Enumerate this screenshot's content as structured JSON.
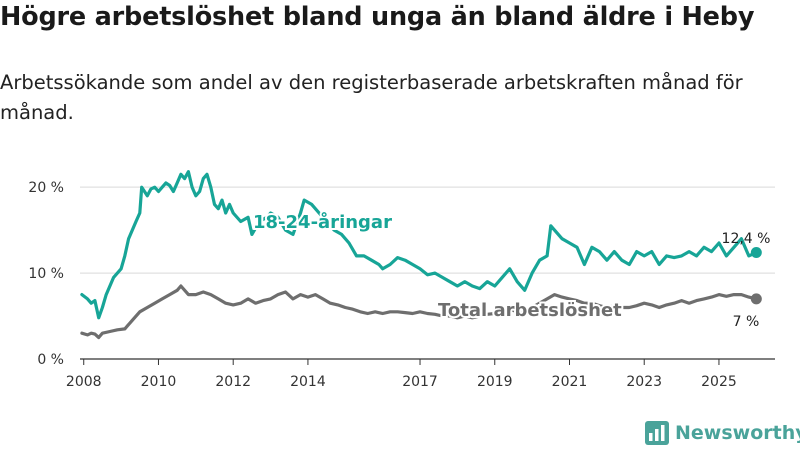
{
  "title": "Högre arbetslöshet bland unga än bland äldre i Heby",
  "subtitle": "Arbetssökande som andel av den registerbaserade arbetskraften månad för månad.",
  "brand": "Newsworthy",
  "colors": {
    "youth": "#17a597",
    "total": "#6e6e6e",
    "axis": "#333333",
    "grid": "#d9d9d9"
  },
  "chart_data": {
    "type": "line",
    "title": "Högre arbetslöshet bland unga än bland äldre i Heby",
    "xlabel": "",
    "ylabel": "",
    "xlim": [
      2007.9,
      2026.5
    ],
    "ylim": [
      0,
      22
    ],
    "y_ticks": [
      0,
      10,
      20
    ],
    "y_tick_labels": [
      "0 %",
      "10 %",
      "20 %"
    ],
    "x_ticks": [
      2008,
      2010,
      2012,
      2014,
      2017,
      2019,
      2021,
      2023,
      2025
    ],
    "x_tick_labels": [
      "2008",
      "2010",
      "2012",
      "2014",
      "2017",
      "2019",
      "2021",
      "2023",
      "2025"
    ],
    "series": [
      {
        "name": "18-24-åringar",
        "end_label": "12,4 %",
        "points": [
          [
            2007.95,
            7.5
          ],
          [
            2008.1,
            7.0
          ],
          [
            2008.2,
            6.5
          ],
          [
            2008.3,
            6.8
          ],
          [
            2008.4,
            4.8
          ],
          [
            2008.5,
            6.0
          ],
          [
            2008.6,
            7.5
          ],
          [
            2008.7,
            8.5
          ],
          [
            2008.8,
            9.5
          ],
          [
            2008.9,
            10.0
          ],
          [
            2009.0,
            10.5
          ],
          [
            2009.1,
            12.0
          ],
          [
            2009.2,
            14.0
          ],
          [
            2009.3,
            15.0
          ],
          [
            2009.4,
            16.0
          ],
          [
            2009.5,
            17.0
          ],
          [
            2009.55,
            20.0
          ],
          [
            2009.7,
            19.0
          ],
          [
            2009.8,
            19.8
          ],
          [
            2009.9,
            20.0
          ],
          [
            2010.0,
            19.5
          ],
          [
            2010.1,
            20.0
          ],
          [
            2010.2,
            20.5
          ],
          [
            2010.3,
            20.2
          ],
          [
            2010.4,
            19.5
          ],
          [
            2010.5,
            20.5
          ],
          [
            2010.6,
            21.5
          ],
          [
            2010.7,
            21.0
          ],
          [
            2010.8,
            21.8
          ],
          [
            2010.9,
            20.0
          ],
          [
            2011.0,
            19.0
          ],
          [
            2011.1,
            19.5
          ],
          [
            2011.2,
            21.0
          ],
          [
            2011.3,
            21.5
          ],
          [
            2011.4,
            20.0
          ],
          [
            2011.5,
            18.0
          ],
          [
            2011.6,
            17.5
          ],
          [
            2011.7,
            18.5
          ],
          [
            2011.8,
            17.0
          ],
          [
            2011.9,
            18.0
          ],
          [
            2012.0,
            17.0
          ],
          [
            2012.2,
            16.0
          ],
          [
            2012.4,
            16.5
          ],
          [
            2012.5,
            14.5
          ],
          [
            2012.7,
            16.0
          ],
          [
            2012.9,
            16.5
          ],
          [
            2013.0,
            17.0
          ],
          [
            2013.2,
            16.5
          ],
          [
            2013.4,
            15.0
          ],
          [
            2013.6,
            14.5
          ],
          [
            2013.8,
            17.0
          ],
          [
            2013.9,
            18.5
          ],
          [
            2014.1,
            18.0
          ],
          [
            2014.3,
            17.0
          ],
          [
            2014.5,
            16.0
          ],
          [
            2014.7,
            15.0
          ],
          [
            2014.9,
            14.5
          ],
          [
            2015.1,
            13.5
          ],
          [
            2015.3,
            12.0
          ],
          [
            2015.5,
            12.0
          ],
          [
            2015.7,
            11.5
          ],
          [
            2015.9,
            11.0
          ],
          [
            2016.0,
            10.5
          ],
          [
            2016.2,
            11.0
          ],
          [
            2016.4,
            11.8
          ],
          [
            2016.6,
            11.5
          ],
          [
            2016.8,
            11.0
          ],
          [
            2017.0,
            10.5
          ],
          [
            2017.2,
            9.8
          ],
          [
            2017.4,
            10.0
          ],
          [
            2017.6,
            9.5
          ],
          [
            2017.8,
            9.0
          ],
          [
            2018.0,
            8.5
          ],
          [
            2018.2,
            9.0
          ],
          [
            2018.4,
            8.5
          ],
          [
            2018.6,
            8.2
          ],
          [
            2018.8,
            9.0
          ],
          [
            2019.0,
            8.5
          ],
          [
            2019.2,
            9.5
          ],
          [
            2019.4,
            10.5
          ],
          [
            2019.6,
            9.0
          ],
          [
            2019.8,
            8.0
          ],
          [
            2020.0,
            10.0
          ],
          [
            2020.2,
            11.5
          ],
          [
            2020.4,
            12.0
          ],
          [
            2020.5,
            15.5
          ],
          [
            2020.6,
            15.0
          ],
          [
            2020.8,
            14.0
          ],
          [
            2021.0,
            13.5
          ],
          [
            2021.2,
            13.0
          ],
          [
            2021.4,
            11.0
          ],
          [
            2021.6,
            13.0
          ],
          [
            2021.8,
            12.5
          ],
          [
            2022.0,
            11.5
          ],
          [
            2022.2,
            12.5
          ],
          [
            2022.4,
            11.5
          ],
          [
            2022.6,
            11.0
          ],
          [
            2022.8,
            12.5
          ],
          [
            2023.0,
            12.0
          ],
          [
            2023.2,
            12.5
          ],
          [
            2023.4,
            11.0
          ],
          [
            2023.6,
            12.0
          ],
          [
            2023.8,
            11.8
          ],
          [
            2024.0,
            12.0
          ],
          [
            2024.2,
            12.5
          ],
          [
            2024.4,
            12.0
          ],
          [
            2024.6,
            13.0
          ],
          [
            2024.8,
            12.5
          ],
          [
            2025.0,
            13.5
          ],
          [
            2025.2,
            12.0
          ],
          [
            2025.4,
            13.0
          ],
          [
            2025.6,
            14.0
          ],
          [
            2025.8,
            12.0
          ],
          [
            2026.0,
            12.4
          ]
        ]
      },
      {
        "name": "Total arbetslöshet",
        "end_label": "7 %",
        "points": [
          [
            2007.95,
            3.0
          ],
          [
            2008.1,
            2.8
          ],
          [
            2008.2,
            3.0
          ],
          [
            2008.3,
            2.9
          ],
          [
            2008.4,
            2.5
          ],
          [
            2008.5,
            3.0
          ],
          [
            2008.7,
            3.2
          ],
          [
            2008.9,
            3.4
          ],
          [
            2009.1,
            3.5
          ],
          [
            2009.3,
            4.5
          ],
          [
            2009.5,
            5.5
          ],
          [
            2009.7,
            6.0
          ],
          [
            2009.9,
            6.5
          ],
          [
            2010.1,
            7.0
          ],
          [
            2010.3,
            7.5
          ],
          [
            2010.5,
            8.0
          ],
          [
            2010.6,
            8.5
          ],
          [
            2010.8,
            7.5
          ],
          [
            2011.0,
            7.5
          ],
          [
            2011.2,
            7.8
          ],
          [
            2011.4,
            7.5
          ],
          [
            2011.6,
            7.0
          ],
          [
            2011.8,
            6.5
          ],
          [
            2012.0,
            6.3
          ],
          [
            2012.2,
            6.5
          ],
          [
            2012.4,
            7.0
          ],
          [
            2012.6,
            6.5
          ],
          [
            2012.8,
            6.8
          ],
          [
            2013.0,
            7.0
          ],
          [
            2013.2,
            7.5
          ],
          [
            2013.4,
            7.8
          ],
          [
            2013.6,
            7.0
          ],
          [
            2013.8,
            7.5
          ],
          [
            2014.0,
            7.2
          ],
          [
            2014.2,
            7.5
          ],
          [
            2014.4,
            7.0
          ],
          [
            2014.6,
            6.5
          ],
          [
            2014.8,
            6.3
          ],
          [
            2015.0,
            6.0
          ],
          [
            2015.2,
            5.8
          ],
          [
            2015.4,
            5.5
          ],
          [
            2015.6,
            5.3
          ],
          [
            2015.8,
            5.5
          ],
          [
            2016.0,
            5.3
          ],
          [
            2016.2,
            5.5
          ],
          [
            2016.4,
            5.5
          ],
          [
            2016.6,
            5.4
          ],
          [
            2016.8,
            5.3
          ],
          [
            2017.0,
            5.5
          ],
          [
            2017.2,
            5.3
          ],
          [
            2017.4,
            5.2
          ],
          [
            2017.6,
            5.0
          ],
          [
            2017.8,
            5.0
          ],
          [
            2018.0,
            4.8
          ],
          [
            2018.2,
            5.0
          ],
          [
            2018.4,
            4.8
          ],
          [
            2018.6,
            5.0
          ],
          [
            2018.8,
            5.2
          ],
          [
            2019.0,
            5.3
          ],
          [
            2019.2,
            5.5
          ],
          [
            2019.4,
            5.8
          ],
          [
            2019.6,
            5.5
          ],
          [
            2019.8,
            5.3
          ],
          [
            2020.0,
            6.0
          ],
          [
            2020.2,
            6.5
          ],
          [
            2020.4,
            7.0
          ],
          [
            2020.6,
            7.5
          ],
          [
            2020.8,
            7.2
          ],
          [
            2021.0,
            7.0
          ],
          [
            2021.2,
            6.8
          ],
          [
            2021.4,
            6.5
          ],
          [
            2021.6,
            6.5
          ],
          [
            2021.8,
            6.2
          ],
          [
            2022.0,
            6.0
          ],
          [
            2022.2,
            6.2
          ],
          [
            2022.4,
            6.0
          ],
          [
            2022.6,
            6.0
          ],
          [
            2022.8,
            6.2
          ],
          [
            2023.0,
            6.5
          ],
          [
            2023.2,
            6.3
          ],
          [
            2023.4,
            6.0
          ],
          [
            2023.6,
            6.3
          ],
          [
            2023.8,
            6.5
          ],
          [
            2024.0,
            6.8
          ],
          [
            2024.2,
            6.5
          ],
          [
            2024.4,
            6.8
          ],
          [
            2024.6,
            7.0
          ],
          [
            2024.8,
            7.2
          ],
          [
            2025.0,
            7.5
          ],
          [
            2025.2,
            7.3
          ],
          [
            2025.4,
            7.5
          ],
          [
            2025.6,
            7.5
          ],
          [
            2025.8,
            7.2
          ],
          [
            2026.0,
            7.0
          ]
        ]
      }
    ]
  }
}
